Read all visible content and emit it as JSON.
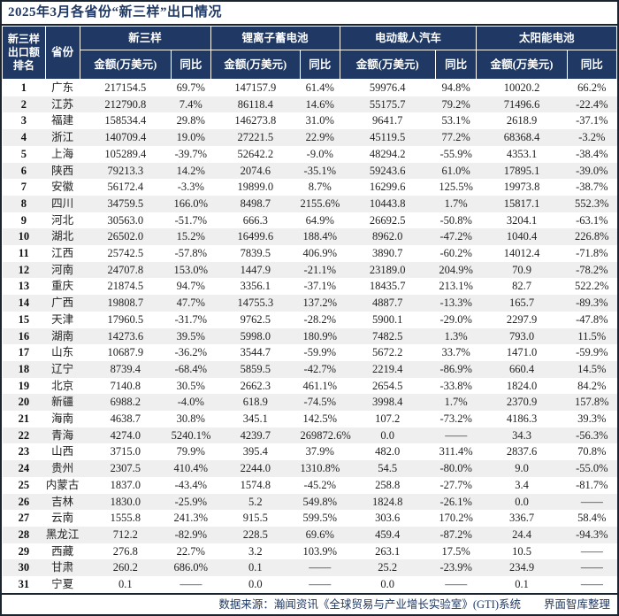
{
  "title": "2025年3月各省份“新三样”出口情况",
  "table": {
    "rank_header_lines": [
      "新三样",
      "出口额",
      "排名"
    ],
    "province_header": "省份",
    "groups": [
      "新三样",
      "锂离子蓄电池",
      "电动载人汽车",
      "太阳能电池"
    ],
    "amount_header": "金额(万美元)",
    "yoy_header": "同比"
  },
  "chart_data": {
    "type": "table",
    "title": "2025年3月各省份“新三样”出口情况",
    "column_groups": [
      "新三样",
      "锂离子蓄电池",
      "电动载人汽车",
      "太阳能电池"
    ],
    "columns": [
      "新三样出口额排名",
      "省份",
      "新三样-金额(万美元)",
      "新三样-同比",
      "锂离子蓄电池-金额(万美元)",
      "锂离子蓄电池-同比",
      "电动载人汽车-金额(万美元)",
      "电动载人汽车-同比",
      "太阳能电池-金额(万美元)",
      "太阳能电池-同比"
    ],
    "rows": [
      [
        "1",
        "广东",
        "217154.5",
        "69.7%",
        "147157.9",
        "61.4%",
        "59976.4",
        "94.8%",
        "10020.2",
        "66.2%"
      ],
      [
        "2",
        "江苏",
        "212790.8",
        "7.4%",
        "86118.4",
        "14.6%",
        "55175.7",
        "79.2%",
        "71496.6",
        "-22.4%"
      ],
      [
        "3",
        "福建",
        "158534.4",
        "29.8%",
        "146273.8",
        "31.0%",
        "9641.7",
        "53.1%",
        "2618.9",
        "-37.1%"
      ],
      [
        "4",
        "浙江",
        "140709.4",
        "19.0%",
        "27221.5",
        "22.9%",
        "45119.5",
        "77.2%",
        "68368.4",
        "-3.2%"
      ],
      [
        "5",
        "上海",
        "105289.4",
        "-39.7%",
        "52642.2",
        "-9.0%",
        "48294.2",
        "-55.9%",
        "4353.1",
        "-38.4%"
      ],
      [
        "6",
        "陕西",
        "79213.3",
        "14.2%",
        "2074.6",
        "-35.1%",
        "59243.6",
        "61.0%",
        "17895.1",
        "-39.0%"
      ],
      [
        "7",
        "安徽",
        "56172.4",
        "-3.3%",
        "19899.0",
        "8.7%",
        "16299.6",
        "125.5%",
        "19973.8",
        "-38.7%"
      ],
      [
        "8",
        "四川",
        "34759.5",
        "166.0%",
        "8498.7",
        "2155.6%",
        "10443.8",
        "1.7%",
        "15817.1",
        "552.3%"
      ],
      [
        "9",
        "河北",
        "30563.0",
        "-51.7%",
        "666.3",
        "64.9%",
        "26692.5",
        "-50.8%",
        "3204.1",
        "-63.1%"
      ],
      [
        "10",
        "湖北",
        "26502.0",
        "15.2%",
        "16499.6",
        "188.4%",
        "8962.0",
        "-47.2%",
        "1040.4",
        "226.8%"
      ],
      [
        "11",
        "江西",
        "25742.5",
        "-57.8%",
        "7839.5",
        "406.9%",
        "3890.7",
        "-60.2%",
        "14012.4",
        "-71.8%"
      ],
      [
        "12",
        "河南",
        "24707.8",
        "153.0%",
        "1447.9",
        "-21.1%",
        "23189.0",
        "204.9%",
        "70.9",
        "-78.2%"
      ],
      [
        "13",
        "重庆",
        "21874.5",
        "94.7%",
        "3356.1",
        "-37.1%",
        "18435.7",
        "213.1%",
        "82.7",
        "522.2%"
      ],
      [
        "14",
        "广西",
        "19808.7",
        "47.7%",
        "14755.3",
        "137.2%",
        "4887.7",
        "-13.3%",
        "165.7",
        "-89.3%"
      ],
      [
        "15",
        "天津",
        "17960.5",
        "-31.7%",
        "9762.5",
        "-28.2%",
        "5900.1",
        "-29.0%",
        "2297.9",
        "-47.8%"
      ],
      [
        "16",
        "湖南",
        "14273.6",
        "39.5%",
        "5998.0",
        "180.9%",
        "7482.5",
        "1.3%",
        "793.0",
        "11.5%"
      ],
      [
        "17",
        "山东",
        "10687.9",
        "-36.2%",
        "3544.7",
        "-59.9%",
        "5672.2",
        "33.7%",
        "1471.0",
        "-59.9%"
      ],
      [
        "18",
        "辽宁",
        "8739.4",
        "-68.4%",
        "5859.5",
        "-42.7%",
        "2219.4",
        "-86.9%",
        "660.4",
        "14.5%"
      ],
      [
        "19",
        "北京",
        "7140.8",
        "30.5%",
        "2662.3",
        "461.1%",
        "2654.5",
        "-33.8%",
        "1824.0",
        "84.2%"
      ],
      [
        "20",
        "新疆",
        "6988.2",
        "-4.0%",
        "618.9",
        "-74.5%",
        "3998.4",
        "1.7%",
        "2370.9",
        "157.8%"
      ],
      [
        "21",
        "海南",
        "4638.7",
        "30.8%",
        "345.1",
        "142.5%",
        "107.2",
        "-73.2%",
        "4186.3",
        "39.3%"
      ],
      [
        "22",
        "青海",
        "4274.0",
        "5240.1%",
        "4239.7",
        "269872.6%",
        "0.0",
        "——",
        "34.3",
        "-56.3%"
      ],
      [
        "23",
        "山西",
        "3715.0",
        "79.9%",
        "395.4",
        "37.9%",
        "482.0",
        "311.4%",
        "2837.6",
        "70.8%"
      ],
      [
        "24",
        "贵州",
        "2307.5",
        "410.4%",
        "2244.0",
        "1310.8%",
        "54.5",
        "-80.0%",
        "9.0",
        "-55.0%"
      ],
      [
        "25",
        "内蒙古",
        "1837.0",
        "-43.4%",
        "1574.8",
        "-45.2%",
        "258.8",
        "-27.7%",
        "3.4",
        "-81.7%"
      ],
      [
        "26",
        "吉林",
        "1830.0",
        "-25.9%",
        "5.2",
        "549.8%",
        "1824.8",
        "-26.1%",
        "0.0",
        "——"
      ],
      [
        "27",
        "云南",
        "1555.8",
        "241.3%",
        "915.5",
        "599.5%",
        "303.6",
        "170.2%",
        "336.7",
        "58.4%"
      ],
      [
        "28",
        "黑龙江",
        "712.2",
        "-82.9%",
        "228.5",
        "69.6%",
        "459.4",
        "-87.2%",
        "24.4",
        "-94.3%"
      ],
      [
        "29",
        "西藏",
        "276.8",
        "22.7%",
        "3.2",
        "103.9%",
        "263.1",
        "17.5%",
        "10.5",
        "——"
      ],
      [
        "30",
        "甘肃",
        "260.2",
        "686.0%",
        "0.1",
        "——",
        "25.2",
        "-23.9%",
        "234.9",
        "——"
      ],
      [
        "31",
        "宁夏",
        "0.1",
        "——",
        "0.0",
        "——",
        "0.0",
        "——",
        "0.1",
        "——"
      ]
    ]
  },
  "footer": {
    "source": "数据来源：瀚闻资讯《全球贸易与产业增长实验室》(GTI)系统",
    "credit": "界面智库整理"
  },
  "colors": {
    "header_bg": "#1F3864",
    "title_color": "#1F3864",
    "stripe": "#EFEFEF",
    "frame": "#1A2430"
  }
}
